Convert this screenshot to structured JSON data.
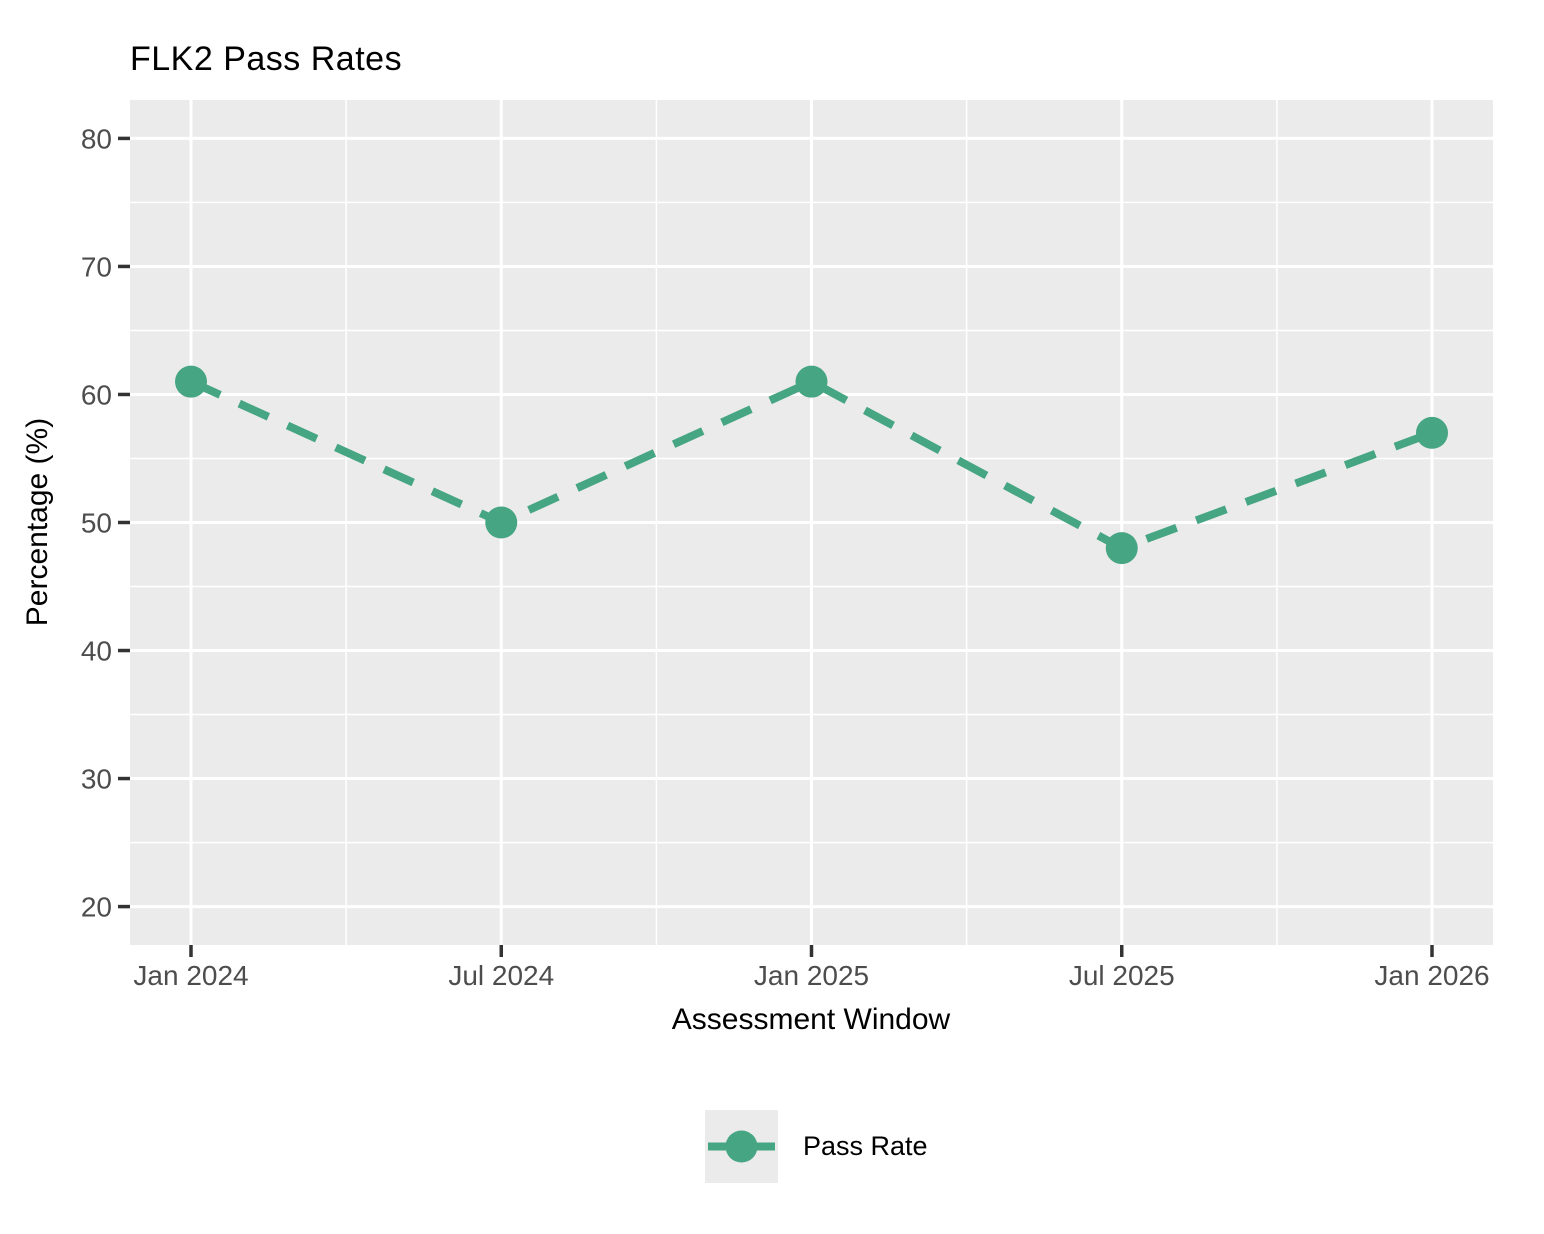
{
  "chart_data": {
    "type": "line",
    "title": "FLK2 Pass Rates",
    "xlabel": "Assessment Window",
    "ylabel": "Percentage (%)",
    "categories": [
      "Jan 2024",
      "Jul 2024",
      "Jan 2025",
      "Jul 2025",
      "Jan 2026"
    ],
    "series": [
      {
        "name": "Pass Rate",
        "values": [
          61,
          50,
          61,
          48,
          57
        ]
      }
    ],
    "y_ticks": [
      20,
      30,
      40,
      50,
      60,
      70,
      80
    ],
    "ylim": [
      17,
      83
    ],
    "grid": {
      "major": true,
      "minor": true
    },
    "legend_position": "bottom",
    "line_style": "dashed",
    "marker": "circle"
  },
  "legend": {
    "items": [
      {
        "label": "Pass Rate"
      }
    ]
  },
  "colors": {
    "series": "#46A583",
    "panel_bg": "#EBEBEB",
    "gridline": "#FFFFFF",
    "tick_label": "#4D4D4D",
    "tick_mark": "#333333",
    "title": "#000000",
    "axis_title": "#000000",
    "legend_key_bg": "#EBEBEB",
    "page_bg": "#FFFFFF"
  }
}
